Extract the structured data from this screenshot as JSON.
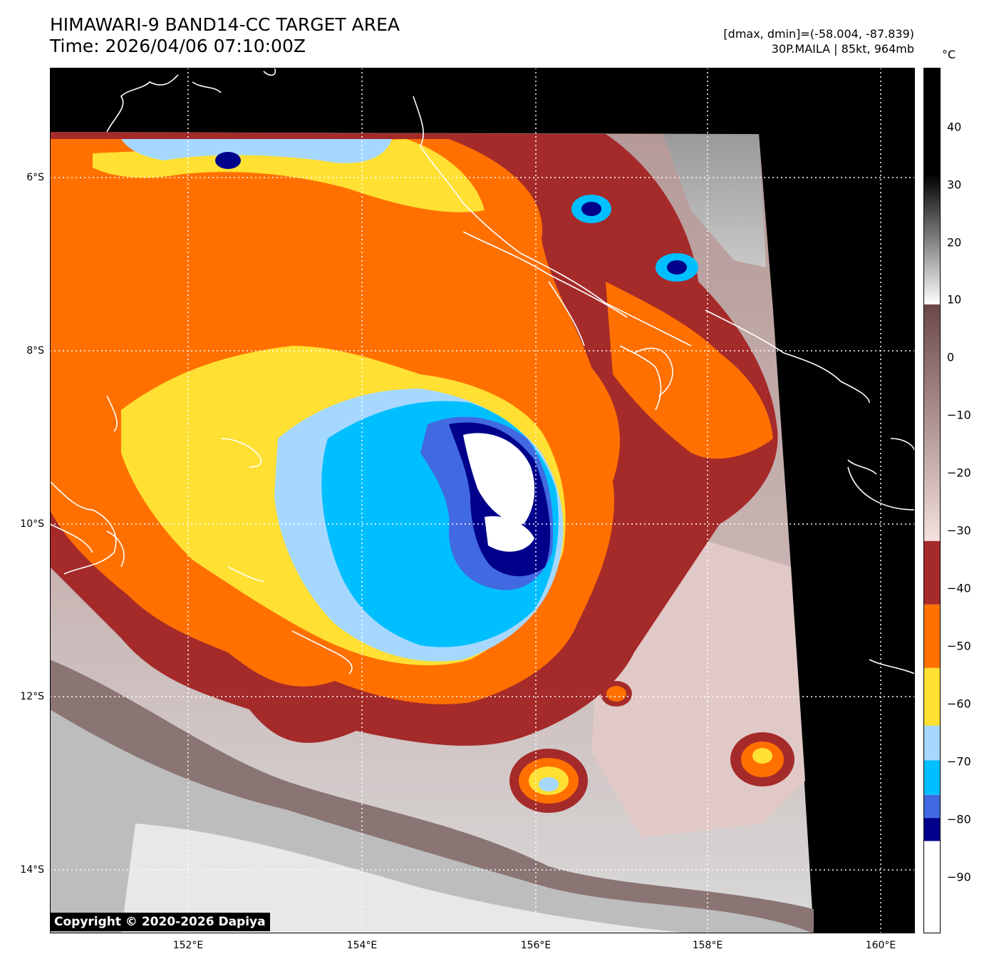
{
  "header": {
    "title_line1": "HIMAWARI-9 BAND14-CC TARGET AREA",
    "title_line2": "Time: 2026/04/06 07:10:00Z",
    "dminmax": "[dmax, dmin]=(-58.004, -87.839)",
    "storm": "30P.MAILA | 85kt, 964mb"
  },
  "colorbar": {
    "unit": "°C",
    "labels": [
      "40",
      "30",
      "20",
      "10",
      "0",
      "−10",
      "−20",
      "−30",
      "−40",
      "−50",
      "−60",
      "−70",
      "−80",
      "−90"
    ],
    "range": [
      -100,
      50
    ],
    "bands": [
      {
        "from": -100,
        "to": -84,
        "color": "#ffffff"
      },
      {
        "from": -84,
        "to": -80,
        "color": "#00008b"
      },
      {
        "from": -80,
        "to": -76,
        "color": "#4169e1"
      },
      {
        "from": -76,
        "to": -70,
        "color": "#00bfff"
      },
      {
        "from": -70,
        "to": -64,
        "color": "#a6d8ff"
      },
      {
        "from": -64,
        "to": -54,
        "color": "#ffe033"
      },
      {
        "from": -54,
        "to": -43,
        "color": "#ff7000"
      },
      {
        "from": -43,
        "to": -32,
        "color": "#a52a2a"
      },
      {
        "from": -32,
        "to": 9,
        "color": "gradient-pink-brown"
      },
      {
        "from": 9,
        "to": 50,
        "color": "gradient-white-black"
      }
    ]
  },
  "axes": {
    "lon_labels": [
      "152°E",
      "154°E",
      "156°E",
      "158°E",
      "160°E"
    ],
    "lat_labels": [
      "6°S",
      "8°S",
      "10°S",
      "12°S",
      "14°S"
    ],
    "lon_values": [
      152,
      154,
      156,
      158,
      160
    ],
    "lat_values": [
      -6,
      -8,
      -10,
      -12,
      -14
    ],
    "lon_range": [
      150.3,
      160.4
    ],
    "lat_range": [
      -14.7,
      -4.7
    ]
  },
  "copyright": "Copyright © 2020-2026 Dapiya"
}
